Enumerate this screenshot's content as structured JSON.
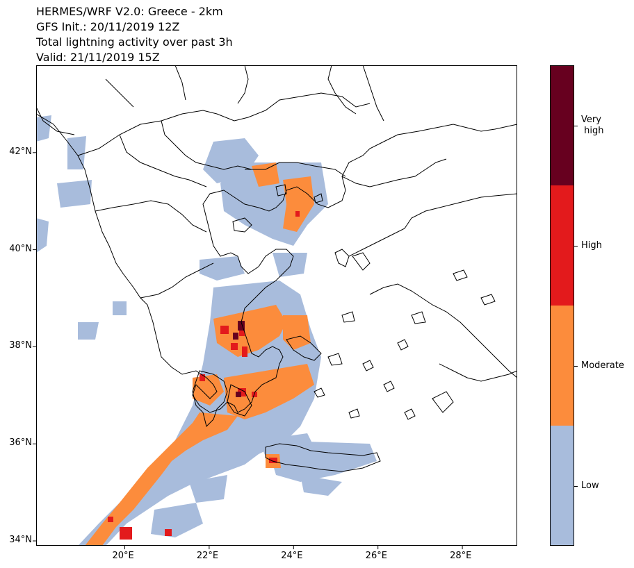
{
  "title": {
    "line1": "HERMES/WRF V2.0: Greece - 2km",
    "line2": "GFS Init.: 20/11/2019 12Z",
    "line3": "Total lightning activity over past 3h",
    "line4": "Valid: 21/11/2019 15Z"
  },
  "map": {
    "lon_range": [
      17.9,
      29.3
    ],
    "lat_range": [
      33.9,
      43.8
    ],
    "lon_ticks": [
      {
        "value": 20,
        "label": "20°E"
      },
      {
        "value": 22,
        "label": "22°E"
      },
      {
        "value": 24,
        "label": "24°E"
      },
      {
        "value": 26,
        "label": "26°E"
      },
      {
        "value": 28,
        "label": "28°E"
      }
    ],
    "lat_ticks": [
      {
        "value": 34,
        "label": "34°N"
      },
      {
        "value": 36,
        "label": "36°N"
      },
      {
        "value": 38,
        "label": "38°N"
      },
      {
        "value": 40,
        "label": "40°N"
      },
      {
        "value": 42,
        "label": "42°N"
      }
    ]
  },
  "colorbar": {
    "levels": [
      {
        "label": "Low",
        "color": "#a8bcdc"
      },
      {
        "label": "Moderate",
        "color": "#fc8c3c"
      },
      {
        "label": "High",
        "color": "#e31a1c"
      },
      {
        "label": "Very\n high",
        "color": "#67001f"
      }
    ]
  },
  "colors": {
    "low": "#a8bcdc",
    "moderate": "#fc8c3c",
    "high": "#e31a1c",
    "very_high": "#67001f",
    "coastline": "#000000"
  }
}
